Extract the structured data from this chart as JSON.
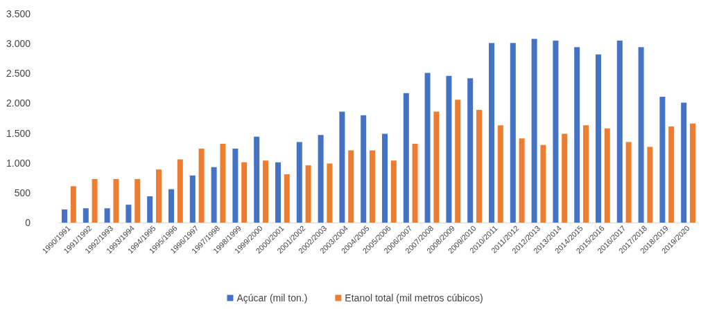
{
  "chart_data": {
    "type": "bar",
    "categories": [
      "1990/1991",
      "1991/1992",
      "1992/1993",
      "1993/1994",
      "1994/1995",
      "1995/1996",
      "1996/1997",
      "1997/1998",
      "1998/1999",
      "1999/2000",
      "2000/2001",
      "2001/2002",
      "2002/2003",
      "2003/2004",
      "2004/2005",
      "2005/2006",
      "2006/2007",
      "2007/2008",
      "2008/2009",
      "2009/2010",
      "2010/2011",
      "2011/2012",
      "2012/2013",
      "2013/2014",
      "2014/2015",
      "2015/2016",
      "2016/2017",
      "2017/2018",
      "2018/2019",
      "2019/2020"
    ],
    "series": [
      {
        "name": "Açúcar (mil ton.)",
        "color": "#4472c4",
        "values": [
          220,
          240,
          240,
          300,
          440,
          560,
          790,
          930,
          1240,
          1440,
          1010,
          1350,
          1470,
          1860,
          1800,
          1490,
          2170,
          2510,
          2460,
          2420,
          3010,
          3010,
          3080,
          3050,
          2940,
          2820,
          3050,
          2940,
          2110,
          2010
        ]
      },
      {
        "name": "Etanol total (mil metros cúbicos)",
        "color": "#ed7d31",
        "values": [
          610,
          730,
          730,
          730,
          890,
          1060,
          1240,
          1320,
          1010,
          1040,
          810,
          960,
          990,
          1210,
          1210,
          1040,
          1320,
          1860,
          2060,
          1890,
          1630,
          1410,
          1300,
          1490,
          1630,
          1580,
          1350,
          1270,
          1610,
          1660
        ]
      }
    ],
    "ylim": [
      0,
      3500
    ],
    "yticks": [
      0,
      500,
      {
        "value": 1000,
        "label": "1.000"
      },
      {
        "value": 1500,
        "label": "1.500"
      },
      {
        "value": 2000,
        "label": "2.000"
      },
      {
        "value": 2500,
        "label": "2.500"
      },
      {
        "value": 3000,
        "label": "3.000"
      },
      {
        "value": 3500,
        "label": "3.500"
      }
    ],
    "grid": false,
    "legend": "bottom"
  }
}
